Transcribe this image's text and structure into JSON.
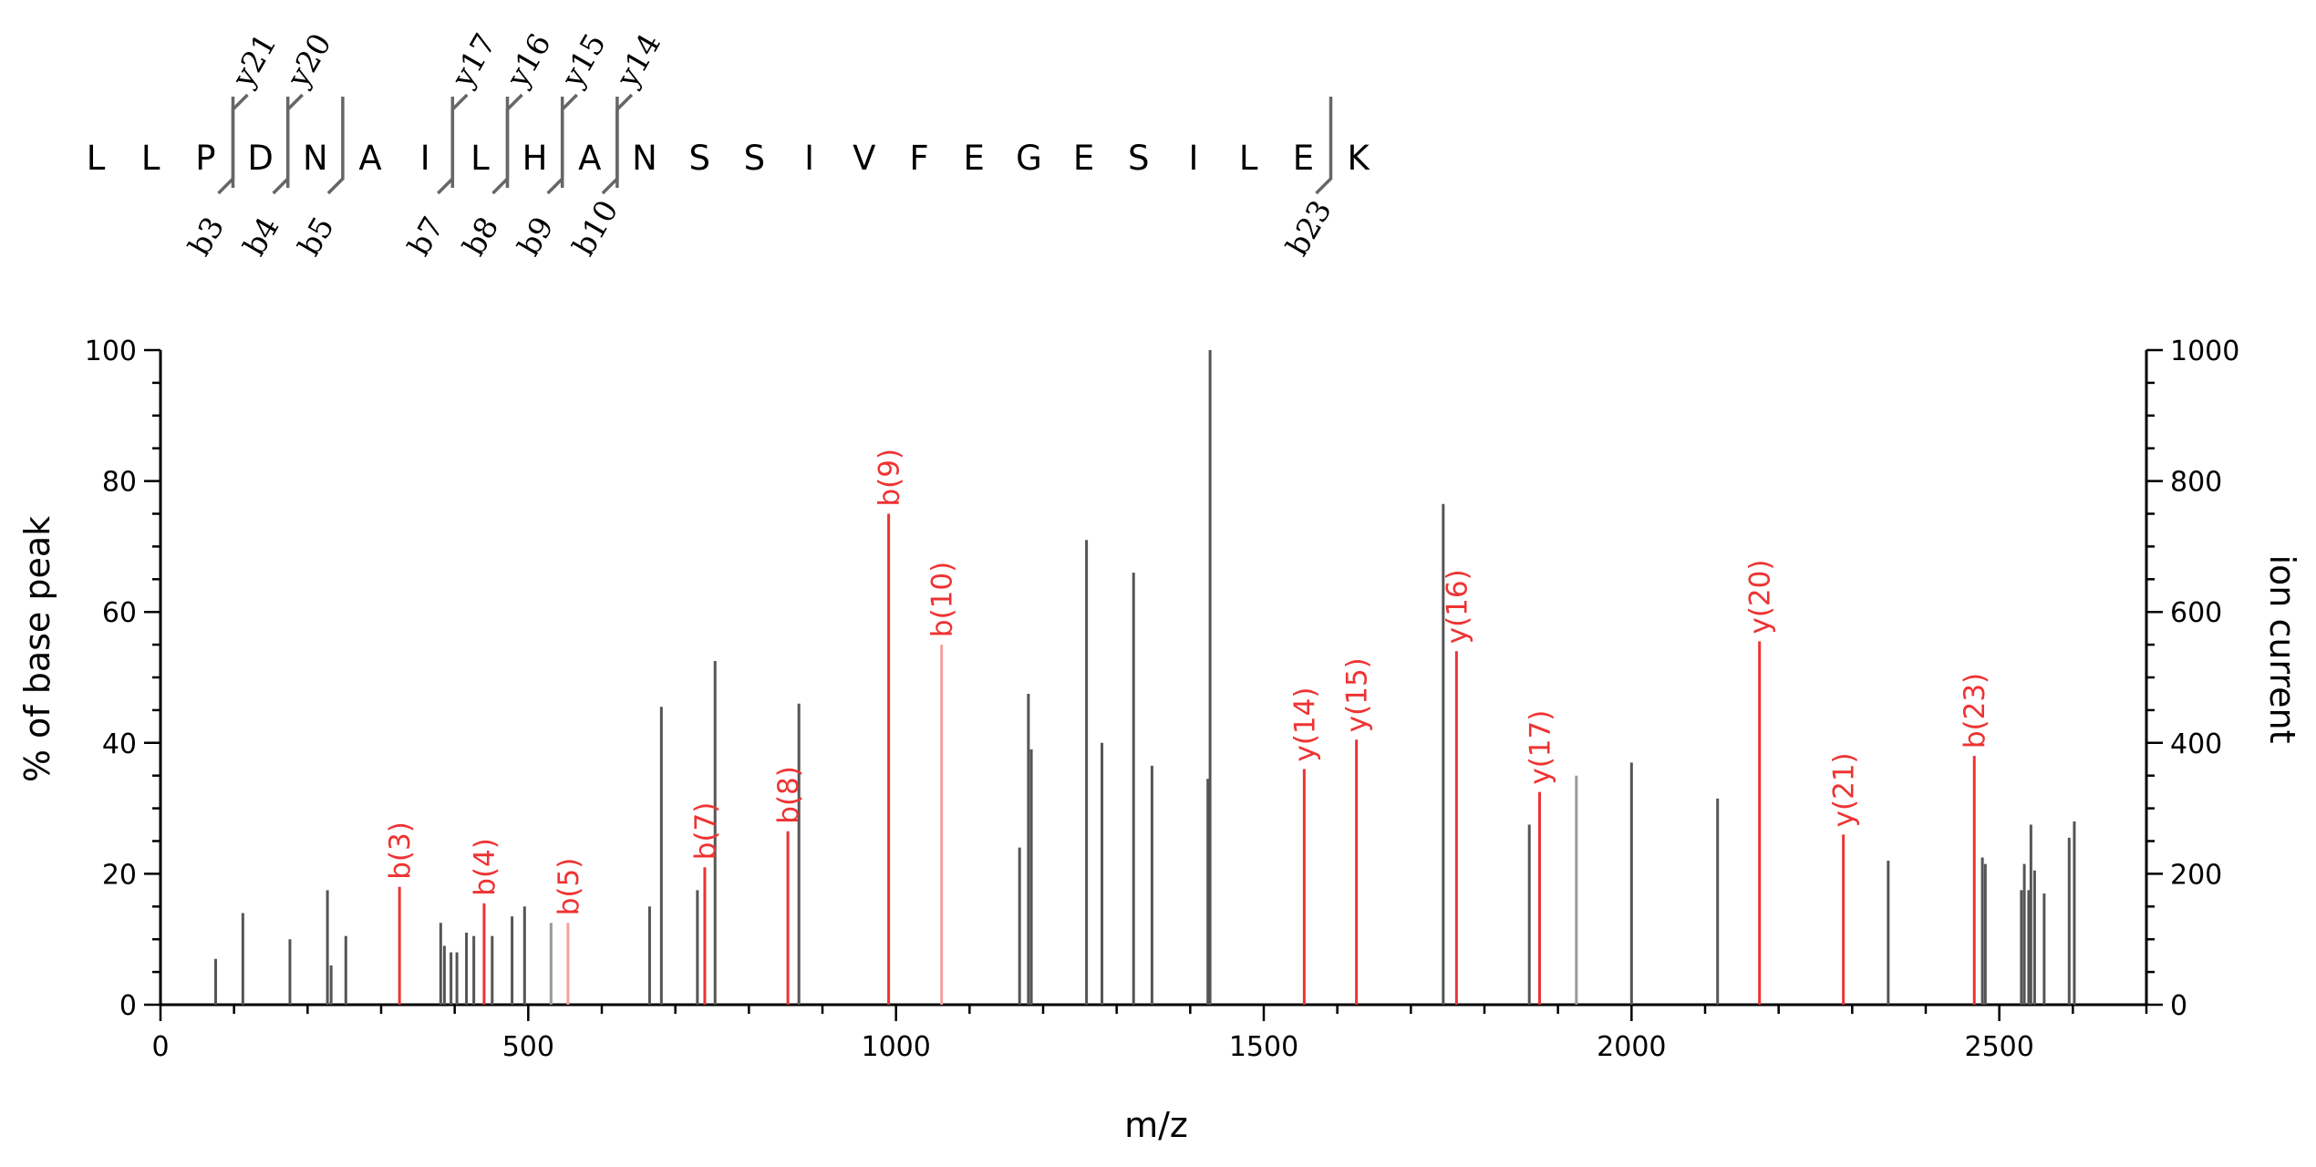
{
  "chart_data": {
    "type": "bar",
    "title": "",
    "xlabel": "m/z",
    "ylabel": "% of base peak",
    "y2label": "ion current",
    "xlim": [
      0,
      2700
    ],
    "ylim": [
      0,
      100
    ],
    "y2lim": [
      0,
      1000
    ],
    "xticks": [
      0,
      500,
      1000,
      1500,
      2000,
      2500
    ],
    "xtick_labels": [
      "0",
      "500",
      "1000",
      "1500",
      "2000",
      "2500"
    ],
    "yticks": [
      0,
      20,
      40,
      60,
      80,
      100
    ],
    "ytick_labels": [
      "0",
      "20",
      "40",
      "60",
      "80",
      "100"
    ],
    "y2ticks": [
      0,
      200,
      400,
      600,
      800,
      1000
    ],
    "y2tick_labels": [
      "0",
      "200",
      "400",
      "600",
      "800",
      "1000"
    ],
    "grid": false,
    "colors": {
      "unassigned": "#555555",
      "assigned": "#ee3333",
      "assigned_light": "#f5a0a0",
      "axis": "#000000"
    },
    "unassigned_peaks": [
      {
        "mz": 75,
        "y": 7
      },
      {
        "mz": 112,
        "y": 14
      },
      {
        "mz": 176,
        "y": 10
      },
      {
        "mz": 227,
        "y": 17.5
      },
      {
        "mz": 232,
        "y": 6
      },
      {
        "mz": 252,
        "y": 10.5
      },
      {
        "mz": 381,
        "y": 12.5
      },
      {
        "mz": 386,
        "y": 9
      },
      {
        "mz": 395,
        "y": 8
      },
      {
        "mz": 403,
        "y": 8
      },
      {
        "mz": 416,
        "y": 11
      },
      {
        "mz": 426,
        "y": 10.5
      },
      {
        "mz": 451,
        "y": 10.5
      },
      {
        "mz": 478,
        "y": 13.5
      },
      {
        "mz": 495,
        "y": 15
      },
      {
        "mz": 531,
        "y": 12.5,
        "light": true
      },
      {
        "mz": 665,
        "y": 15
      },
      {
        "mz": 681,
        "y": 45.5
      },
      {
        "mz": 730,
        "y": 17.5
      },
      {
        "mz": 754,
        "y": 52.5
      },
      {
        "mz": 868,
        "y": 46
      },
      {
        "mz": 1168,
        "y": 24
      },
      {
        "mz": 1180,
        "y": 47.5
      },
      {
        "mz": 1184,
        "y": 39
      },
      {
        "mz": 1259,
        "y": 71
      },
      {
        "mz": 1280,
        "y": 40
      },
      {
        "mz": 1323,
        "y": 66
      },
      {
        "mz": 1348,
        "y": 36.5
      },
      {
        "mz": 1424,
        "y": 34.5
      },
      {
        "mz": 1427,
        "y": 100
      },
      {
        "mz": 1744,
        "y": 76.5
      },
      {
        "mz": 1861,
        "y": 27.5
      },
      {
        "mz": 1925,
        "y": 35,
        "light": true
      },
      {
        "mz": 2000,
        "y": 37
      },
      {
        "mz": 2117,
        "y": 31.5
      },
      {
        "mz": 2349,
        "y": 22
      },
      {
        "mz": 2477,
        "y": 22.5
      },
      {
        "mz": 2481,
        "y": 21.5
      },
      {
        "mz": 2530,
        "y": 17.5
      },
      {
        "mz": 2534,
        "y": 21.5
      },
      {
        "mz": 2540,
        "y": 17.5
      },
      {
        "mz": 2543,
        "y": 27.5
      },
      {
        "mz": 2548,
        "y": 20.5
      },
      {
        "mz": 2561,
        "y": 17
      },
      {
        "mz": 2595,
        "y": 25.5
      },
      {
        "mz": 2602,
        "y": 28
      }
    ],
    "assigned_peaks": [
      {
        "mz": 325,
        "y": 18,
        "label": "b(3)"
      },
      {
        "mz": 440,
        "y": 15.5,
        "label": "b(4)"
      },
      {
        "mz": 554,
        "y": 12.5,
        "label": "b(5)",
        "light": true
      },
      {
        "mz": 740,
        "y": 21,
        "label": "b(7)"
      },
      {
        "mz": 853,
        "y": 26.5,
        "label": "b(8)"
      },
      {
        "mz": 990,
        "y": 75,
        "label": "b(9)"
      },
      {
        "mz": 1062,
        "y": 55,
        "label": "b(10)",
        "light": true
      },
      {
        "mz": 1555,
        "y": 36,
        "label": "y(14)"
      },
      {
        "mz": 1626,
        "y": 40.5,
        "label": "y(15)"
      },
      {
        "mz": 1762,
        "y": 54,
        "label": "y(16)"
      },
      {
        "mz": 1875,
        "y": 32.5,
        "label": "y(17)"
      },
      {
        "mz": 2174,
        "y": 55.5,
        "label": "y(20)"
      },
      {
        "mz": 2288,
        "y": 26,
        "label": "y(21)"
      },
      {
        "mz": 2466,
        "y": 38,
        "label": "b(23)"
      }
    ]
  },
  "sequence": {
    "residues": [
      "L",
      "L",
      "P",
      "D",
      "N",
      "A",
      "I",
      "L",
      "H",
      "A",
      "N",
      "S",
      "S",
      "I",
      "V",
      "F",
      "E",
      "G",
      "E",
      "S",
      "I",
      "L",
      "E",
      "K"
    ],
    "y_ions": [
      {
        "after": 3,
        "label": "y21"
      },
      {
        "after": 4,
        "label": "y20"
      },
      {
        "after": 7,
        "label": "y17"
      },
      {
        "after": 8,
        "label": "y16"
      },
      {
        "after": 9,
        "label": "y15"
      },
      {
        "after": 10,
        "label": "y14"
      }
    ],
    "b_ions": [
      {
        "after": 3,
        "label": "b3"
      },
      {
        "after": 4,
        "label": "b4"
      },
      {
        "after": 5,
        "label": "b5"
      },
      {
        "after": 7,
        "label": "b7"
      },
      {
        "after": 8,
        "label": "b8"
      },
      {
        "after": 9,
        "label": "b9"
      },
      {
        "after": 10,
        "label": "b10"
      },
      {
        "after": 23,
        "label": "b23"
      }
    ]
  }
}
